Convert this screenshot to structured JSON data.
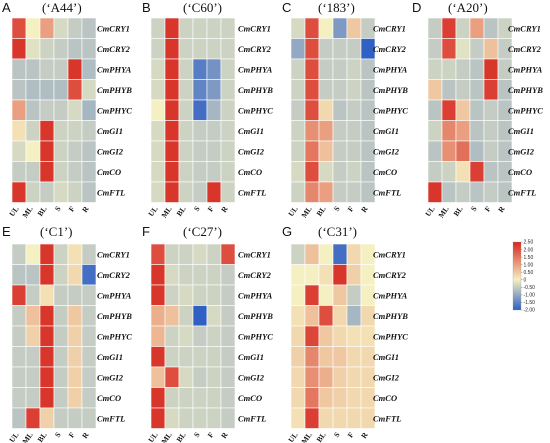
{
  "chart_data": {
    "type": "heatmap",
    "genes": [
      "CmCRY1",
      "CmCRY2",
      "CmPHYA",
      "CmPHYB",
      "CmPHYC",
      "CmGI1",
      "CmGI2",
      "CmCO",
      "CmFTL"
    ],
    "tissues": [
      "UL",
      "ML",
      "BL",
      "S",
      "F",
      "R"
    ],
    "color_scale": {
      "min": -2.0,
      "max": 2.5,
      "ticks": [
        "2.50",
        "2.00",
        "1.50",
        "1.00",
        "0.50",
        "0",
        "-0.50",
        "-1.00",
        "-1.50",
        "-2.00"
      ],
      "colors": {
        "low": "#2f60c4",
        "mid": "#f5f0c2",
        "high": "#d7261e"
      }
    },
    "panels": [
      {
        "letter": "A",
        "cultivar": "(‘A44’)",
        "values": [
          [
            2.0,
            0.0,
            1.0,
            -0.3,
            -0.5,
            -0.6
          ],
          [
            2.3,
            -0.2,
            -0.4,
            -0.5,
            -0.6,
            -0.6
          ],
          [
            -0.6,
            -0.6,
            -0.5,
            -0.5,
            2.3,
            -0.7
          ],
          [
            -0.6,
            -0.7,
            -0.7,
            -0.7,
            2.0,
            -0.3
          ],
          [
            1.0,
            -0.6,
            -0.5,
            -0.5,
            -0.3,
            -0.8
          ],
          [
            0.2,
            -0.4,
            2.3,
            -0.4,
            -0.4,
            -0.5
          ],
          [
            -0.3,
            0.0,
            2.3,
            -0.4,
            -0.5,
            -0.6
          ],
          [
            -0.5,
            -0.5,
            2.3,
            -0.4,
            -0.5,
            -0.6
          ],
          [
            2.3,
            -0.4,
            -0.5,
            -0.3,
            -0.4,
            -0.6
          ]
        ]
      },
      {
        "letter": "B",
        "cultivar": "(‘C60’)",
        "values": [
          [
            -0.4,
            2.3,
            -0.4,
            -0.4,
            -0.4,
            -0.4
          ],
          [
            -0.4,
            2.3,
            -0.4,
            -0.4,
            -0.4,
            -0.4
          ],
          [
            -0.3,
            2.3,
            -0.4,
            -1.6,
            -1.3,
            -0.4
          ],
          [
            -0.3,
            2.3,
            -0.4,
            -1.5,
            -1.2,
            -0.4
          ],
          [
            0.0,
            2.3,
            -0.4,
            -1.8,
            -0.8,
            -0.4
          ],
          [
            -0.3,
            2.3,
            -0.4,
            -0.5,
            -0.5,
            -0.4
          ],
          [
            -0.3,
            2.3,
            -0.4,
            -0.5,
            -0.5,
            -0.4
          ],
          [
            -0.3,
            2.3,
            -0.4,
            -0.5,
            -0.5,
            -0.4
          ],
          [
            -0.3,
            2.3,
            -0.4,
            -0.5,
            2.3,
            -0.4
          ]
        ]
      },
      {
        "letter": "C",
        "cultivar": "(‘183’)",
        "values": [
          [
            -0.3,
            2.0,
            0.0,
            -1.2,
            0.5,
            -0.5
          ],
          [
            -1.0,
            2.0,
            -0.5,
            -0.5,
            -0.5,
            -2.0
          ],
          [
            -0.4,
            2.0,
            -0.5,
            -0.5,
            -0.4,
            -0.6
          ],
          [
            -0.4,
            2.0,
            -0.5,
            -0.5,
            -0.4,
            -0.6
          ],
          [
            -0.5,
            2.0,
            0.3,
            -0.6,
            -0.5,
            -0.6
          ],
          [
            -0.4,
            1.2,
            1.0,
            -0.5,
            -0.5,
            -0.6
          ],
          [
            -0.4,
            1.5,
            0.6,
            -0.5,
            -0.5,
            -0.6
          ],
          [
            -0.3,
            2.0,
            -0.3,
            -0.5,
            -0.4,
            -0.6
          ],
          [
            -0.4,
            1.3,
            1.0,
            -0.5,
            -0.5,
            -0.6
          ]
        ]
      },
      {
        "letter": "D",
        "cultivar": "(‘A20’)",
        "values": [
          [
            -0.5,
            2.2,
            -0.4,
            1.0,
            -0.6,
            -0.4
          ],
          [
            -0.5,
            2.0,
            -0.2,
            -0.5,
            0.6,
            -0.5
          ],
          [
            -0.4,
            -0.4,
            -0.5,
            -0.6,
            2.3,
            -0.5
          ],
          [
            0.5,
            -0.6,
            -0.5,
            -0.6,
            2.2,
            -0.6
          ],
          [
            -0.6,
            2.2,
            0.5,
            -0.6,
            -0.5,
            -0.6
          ],
          [
            -0.4,
            1.3,
            1.0,
            -0.6,
            -0.5,
            -0.6
          ],
          [
            -0.6,
            1.2,
            1.6,
            -0.7,
            -0.5,
            -0.6
          ],
          [
            -0.5,
            -0.4,
            0.2,
            2.2,
            -0.6,
            -0.6
          ],
          [
            2.3,
            -0.6,
            -0.5,
            -0.6,
            -0.5,
            -0.6
          ]
        ]
      },
      {
        "letter": "E",
        "cultivar": "(‘C1’)",
        "values": [
          [
            -0.5,
            0.0,
            2.3,
            -0.4,
            0.2,
            -0.5
          ],
          [
            -0.6,
            -0.6,
            2.3,
            -0.4,
            0.3,
            -1.8
          ],
          [
            2.2,
            -0.5,
            0.2,
            -0.5,
            -0.5,
            -0.5
          ],
          [
            -0.5,
            0.6,
            2.3,
            -0.5,
            0.5,
            -0.5
          ],
          [
            -0.5,
            0.4,
            2.3,
            -0.5,
            0.4,
            -0.5
          ],
          [
            -0.5,
            -0.5,
            2.3,
            -0.5,
            0.4,
            -0.5
          ],
          [
            -0.5,
            -0.5,
            2.3,
            -0.5,
            0.4,
            -0.5
          ],
          [
            -0.5,
            -0.5,
            2.3,
            -0.5,
            0.4,
            -0.5
          ],
          [
            -0.6,
            2.2,
            0.4,
            -0.5,
            -0.5,
            -0.5
          ]
        ]
      },
      {
        "letter": "F",
        "cultivar": "(‘C27’)",
        "values": [
          [
            2.0,
            -0.4,
            -0.4,
            -0.3,
            -0.4,
            2.0
          ],
          [
            2.3,
            -0.3,
            -0.4,
            -0.4,
            -0.4,
            -0.5
          ],
          [
            2.3,
            -0.4,
            -0.3,
            -0.4,
            -0.4,
            -0.5
          ],
          [
            0.8,
            0.6,
            -0.4,
            -2.0,
            -0.3,
            -0.5
          ],
          [
            0.7,
            -0.4,
            -0.3,
            -0.5,
            -0.4,
            -0.5
          ],
          [
            2.3,
            -0.4,
            -0.4,
            -0.4,
            -0.4,
            -0.5
          ],
          [
            0.6,
            2.0,
            -0.3,
            -0.5,
            -0.4,
            -0.5
          ],
          [
            2.3,
            -0.4,
            -0.4,
            -0.4,
            -0.4,
            -0.5
          ],
          [
            2.3,
            -0.3,
            -0.4,
            -0.4,
            -0.4,
            -0.5
          ]
        ]
      },
      {
        "letter": "G",
        "cultivar": "(‘C31’)",
        "values": [
          [
            -0.4,
            0.6,
            0.0,
            -1.8,
            0.3,
            0.0
          ],
          [
            0.0,
            0.0,
            0.2,
            2.3,
            0.4,
            0.0
          ],
          [
            0.0,
            2.2,
            0.0,
            0.5,
            -0.5,
            0.0
          ],
          [
            0.2,
            0.6,
            2.0,
            0.3,
            -0.8,
            0.3
          ],
          [
            0.3,
            2.1,
            0.5,
            0.3,
            0.2,
            0.2
          ],
          [
            0.4,
            1.3,
            0.5,
            0.5,
            0.3,
            0.3
          ],
          [
            0.3,
            1.2,
            0.8,
            0.4,
            0.3,
            0.3
          ],
          [
            0.3,
            1.5,
            0.5,
            0.4,
            0.3,
            0.3
          ],
          [
            0.2,
            2.2,
            0.3,
            0.3,
            0.3,
            0.3
          ]
        ]
      }
    ]
  }
}
